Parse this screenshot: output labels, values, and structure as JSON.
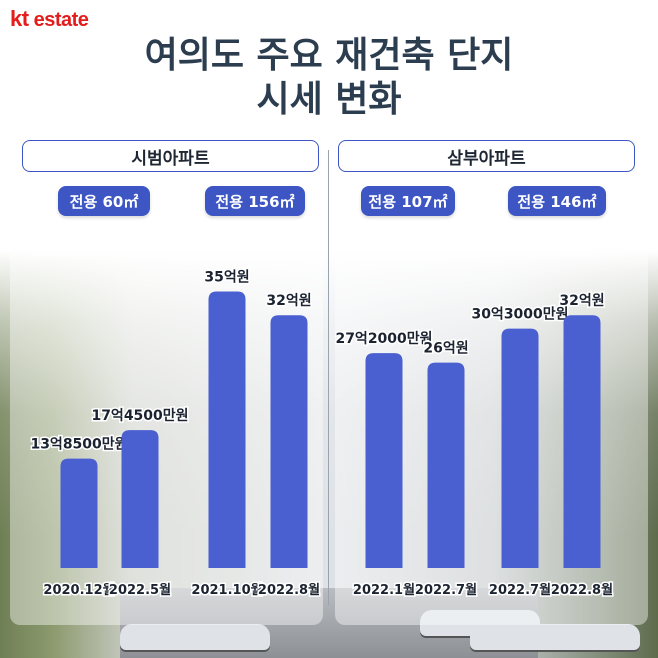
{
  "brand": {
    "logo_kt": "kt",
    "logo_rest": " estate"
  },
  "title": {
    "line1": "여의도 주요 재건축 단지",
    "line2": "시세 변화"
  },
  "complexes": [
    {
      "name": "시범아파트",
      "sizes": [
        "전용 60㎡",
        "전용 156㎡"
      ]
    },
    {
      "name": "삼부아파트",
      "sizes": [
        "전용 107㎡",
        "전용 146㎡"
      ]
    }
  ],
  "colors": {
    "bar": "#4a5fd0",
    "accent": "#3d56c4",
    "brand": "#e31d1c",
    "title": "#2b3d4f"
  },
  "chart_data": {
    "type": "bar",
    "unit": "억원",
    "ylim": [
      0,
      38
    ],
    "grid": false,
    "bars": [
      {
        "group": "시범아파트 전용 60㎡",
        "date": "2020.12월",
        "value": 13.85,
        "label": "13억8500만원"
      },
      {
        "group": "시범아파트 전용 60㎡",
        "date": "2022.5월",
        "value": 17.45,
        "label": "17억4500만원"
      },
      {
        "group": "시범아파트 전용 156㎡",
        "date": "2021.10월",
        "value": 35,
        "label": "35억원"
      },
      {
        "group": "시범아파트 전용 156㎡",
        "date": "2022.8월",
        "value": 32,
        "label": "32억원"
      },
      {
        "group": "삼부아파트 전용 107㎡",
        "date": "2022.1월",
        "value": 27.2,
        "label": "27억2000만원"
      },
      {
        "group": "삼부아파트 전용 107㎡",
        "date": "2022.7월",
        "value": 26,
        "label": "26억원"
      },
      {
        "group": "삼부아파트 전용 146㎡",
        "date": "2022.7월",
        "value": 30.3,
        "label": "30억3000만원"
      },
      {
        "group": "삼부아파트 전용 146㎡",
        "date": "2022.8월",
        "value": 32,
        "label": "32억원"
      }
    ]
  }
}
